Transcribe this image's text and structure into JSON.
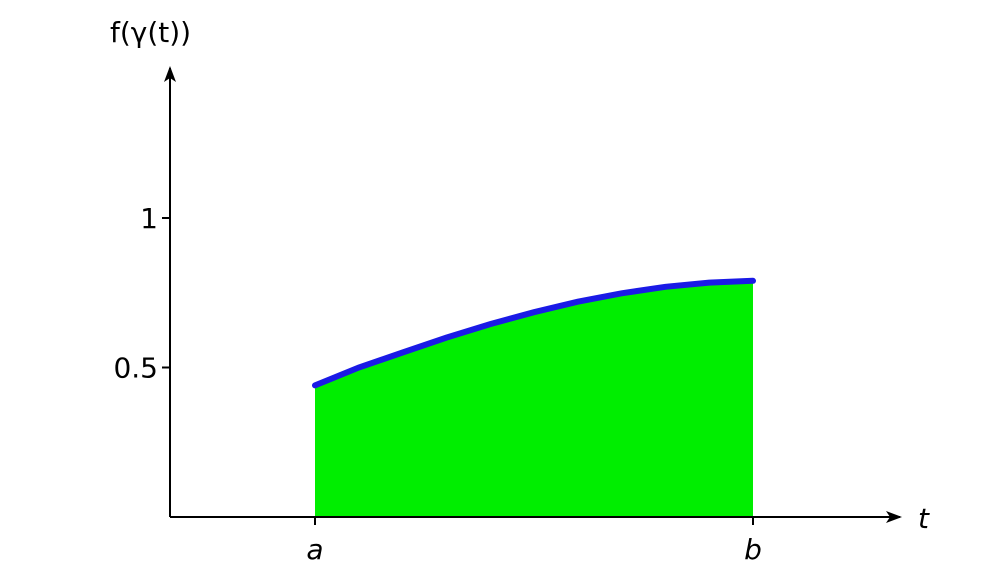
{
  "chart_data": {
    "type": "area",
    "title": "",
    "xlabel": "t",
    "ylabel": "f(γ(t))",
    "x_ticks": [
      {
        "value": 0.0,
        "label": "a"
      },
      {
        "value": 1.0,
        "label": "b"
      }
    ],
    "y_ticks": [
      {
        "value": 0.5,
        "label": "0.5"
      },
      {
        "value": 1.0,
        "label": "1"
      }
    ],
    "xlim": [
      -0.33,
      1.33
    ],
    "ylim": [
      0.0,
      1.45
    ],
    "grid": false,
    "series": [
      {
        "x": [
          0.0,
          0.1,
          0.2,
          0.3,
          0.4,
          0.5,
          0.6,
          0.7,
          0.8,
          0.9,
          1.0
        ],
        "y": [
          0.44,
          0.5,
          0.55,
          0.6,
          0.645,
          0.685,
          0.72,
          0.748,
          0.77,
          0.784,
          0.79
        ],
        "line_color": "#1a1ae6",
        "fill_color": "#00ee00"
      }
    ]
  }
}
